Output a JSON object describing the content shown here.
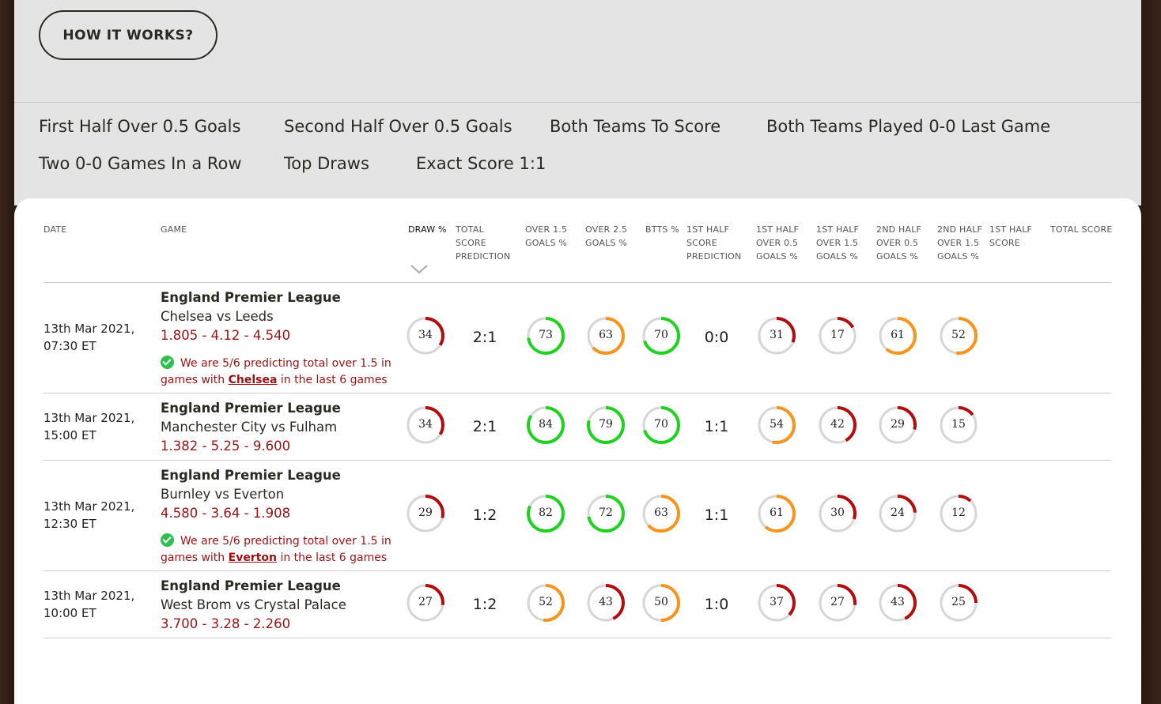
{
  "how_it_works": "HOW IT WORKS?",
  "nav": [
    "First Half Over 0.5 Goals",
    "Second Half Over 0.5 Goals",
    "Both Teams To Score",
    "Both Teams Played 0-0 Last Game",
    "Two 0-0 Games In a Row",
    "Top Draws",
    "Exact Score 1:1"
  ],
  "headers": {
    "date": "DATE",
    "game": "GAME",
    "draw": "DRAW %",
    "total_score_prediction": "TOTAL SCORE PREDICTION",
    "over15": "OVER 1.5 GOALS %",
    "over25": "OVER 2.5 GOALS %",
    "btts": "BTTS %",
    "half1_score_prediction": "1ST HALF SCORE PREDICTION",
    "half1_over05": "1ST HALF OVER 0.5 GOALS %",
    "half1_over15": "1ST HALF OVER 1.5 GOALS %",
    "half2_over05": "2ND HALF OVER 0.5 GOALS %",
    "half2_over15": "2ND HALF OVER 1.5 GOALS %",
    "half1_score": "1ST HALF SCORE",
    "total_score": "TOTAL SCORE"
  },
  "colors": {
    "green": "#1fd21f",
    "orange": "#f7941d",
    "red": "#b20d0d",
    "track": "#d6d6d6"
  },
  "rows": [
    {
      "date_line1": "13th Mar 2021,",
      "date_line2": "07:30 ET",
      "league": "England Premier League",
      "teams": "Chelsea vs Leeds",
      "odds": "1.805 - 4.12 - 4.540",
      "note": {
        "pre": "We are 5/6 predicting total over 1.5 in games with",
        "team": "Chelsea",
        "post": "in the last 6 games"
      },
      "draw": "34",
      "total_pred": "2:1",
      "over15": "73",
      "over25": "63",
      "btts": "70",
      "half1_pred": "0:0",
      "h1o05": "31",
      "h1o15": "17",
      "h2o05": "61",
      "h2o15": "52"
    },
    {
      "date_line1": "13th Mar 2021,",
      "date_line2": "15:00 ET",
      "league": "England Premier League",
      "teams": "Manchester City vs Fulham",
      "odds": "1.382 - 5.25 - 9.600",
      "note": null,
      "draw": "34",
      "total_pred": "2:1",
      "over15": "84",
      "over25": "79",
      "btts": "70",
      "half1_pred": "1:1",
      "h1o05": "54",
      "h1o15": "42",
      "h2o05": "29",
      "h2o15": "15"
    },
    {
      "date_line1": "13th Mar 2021,",
      "date_line2": "12:30 ET",
      "league": "England Premier League",
      "teams": "Burnley vs Everton",
      "odds": "4.580 - 3.64 - 1.908",
      "note": {
        "pre": "We are 5/6 predicting total over 1.5 in games with",
        "team": "Everton",
        "post": "in the last 6 games"
      },
      "draw": "29",
      "total_pred": "1:2",
      "over15": "82",
      "over25": "72",
      "btts": "63",
      "half1_pred": "1:1",
      "h1o05": "61",
      "h1o15": "30",
      "h2o05": "24",
      "h2o15": "12"
    },
    {
      "date_line1": "13th Mar 2021,",
      "date_line2": "10:00 ET",
      "league": "England Premier League",
      "teams": "West Brom vs Crystal Palace",
      "odds": "3.700 - 3.28 - 2.260",
      "note": null,
      "draw": "27",
      "total_pred": "1:2",
      "over15": "52",
      "over25": "43",
      "btts": "50",
      "half1_pred": "1:0",
      "h1o05": "37",
      "h1o15": "27",
      "h2o05": "43",
      "h2o15": "25"
    }
  ]
}
